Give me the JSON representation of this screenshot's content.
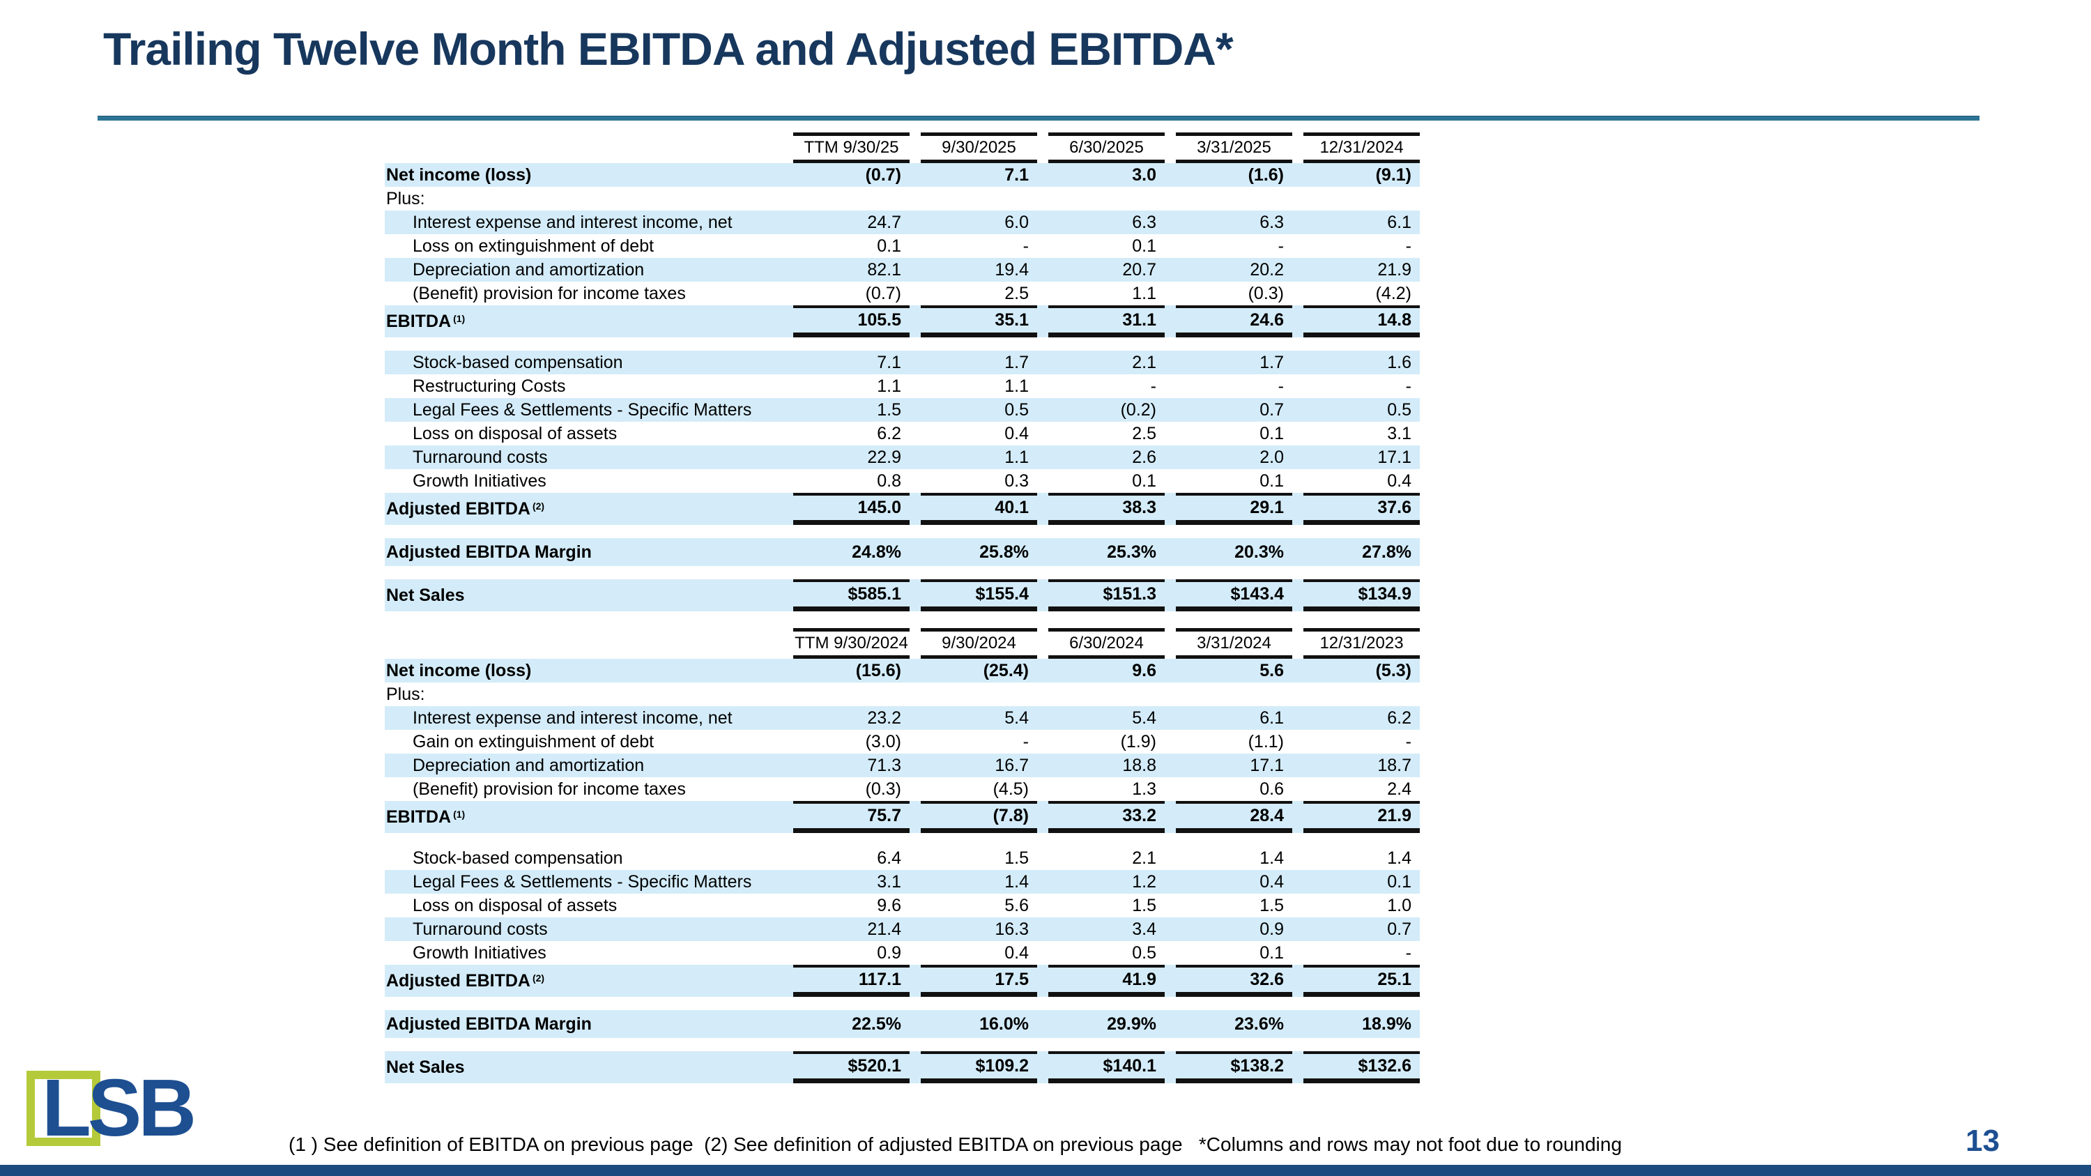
{
  "slide": {
    "title": "Trailing Twelve Month EBITDA and Adjusted EBITDA*",
    "footnote": "(1 ) See definition of EBITDA on previous page  (2) See definition of adjusted EBITDA on previous page   *Columns and rows may not foot due to rounding",
    "page_number": "13",
    "logo_text": "LSB"
  },
  "colors": {
    "title_navy": "#17375d",
    "rule_teal": "#2d7494",
    "row_blue": "#d4ecf9",
    "logo_green": "#b5ca3a",
    "logo_blue": "#1d4f91",
    "bottom_bar_navy": "#1b4b7f"
  },
  "chart_data": [
    {
      "type": "table",
      "title": "TTM EBITDA and Adjusted EBITDA - 2025 periods ($M)",
      "headers": [
        "TTM 9/30/25",
        "9/30/2025",
        "6/30/2025",
        "3/31/2025",
        "12/31/2024"
      ],
      "rows": [
        {
          "label": "Net income (loss)",
          "bold": true,
          "shaded": true,
          "values": [
            "(0.7)",
            "7.1",
            "3.0",
            "(1.6)",
            "(9.1)"
          ]
        },
        {
          "label": "Plus:",
          "values": [
            "",
            "",
            "",
            "",
            ""
          ]
        },
        {
          "label": "Interest expense and interest income, net",
          "indent": 1,
          "shaded": true,
          "values": [
            "24.7",
            "6.0",
            "6.3",
            "6.3",
            "6.1"
          ]
        },
        {
          "label": "Loss on extinguishment of debt",
          "indent": 1,
          "values": [
            "0.1",
            "-",
            "0.1",
            "-",
            "-"
          ]
        },
        {
          "label": "Depreciation and amortization",
          "indent": 1,
          "shaded": true,
          "values": [
            "82.1",
            "19.4",
            "20.7",
            "20.2",
            "21.9"
          ]
        },
        {
          "label": "(Benefit) provision for income taxes",
          "indent": 1,
          "values": [
            "(0.7)",
            "2.5",
            "1.1",
            "(0.3)",
            "(4.2)"
          ]
        },
        {
          "label": "EBITDA",
          "sup": "(1)",
          "total": true,
          "shaded": true,
          "lines": true,
          "values": [
            "105.5",
            "35.1",
            "31.1",
            "24.6",
            "14.8"
          ]
        },
        {
          "type": "spacer"
        },
        {
          "label": "Stock-based compensation",
          "indent": 1,
          "shaded": true,
          "values": [
            "7.1",
            "1.7",
            "2.1",
            "1.7",
            "1.6"
          ]
        },
        {
          "label": "Restructuring Costs",
          "indent": 1,
          "values": [
            "1.1",
            "1.1",
            "-",
            "-",
            "-"
          ]
        },
        {
          "label": "Legal Fees & Settlements - Specific Matters",
          "indent": 1,
          "shaded": true,
          "values": [
            "1.5",
            "0.5",
            "(0.2)",
            "0.7",
            "0.5"
          ]
        },
        {
          "label": "Loss on disposal of assets",
          "indent": 1,
          "values": [
            "6.2",
            "0.4",
            "2.5",
            "0.1",
            "3.1"
          ]
        },
        {
          "label": "Turnaround costs",
          "indent": 1,
          "shaded": true,
          "values": [
            "22.9",
            "1.1",
            "2.6",
            "2.0",
            "17.1"
          ]
        },
        {
          "label": "Growth Initiatives",
          "indent": 1,
          "values": [
            "0.8",
            "0.3",
            "0.1",
            "0.1",
            "0.4"
          ]
        },
        {
          "label": "Adjusted EBITDA",
          "sup": "(2)",
          "total": true,
          "shaded": true,
          "lines": true,
          "values": [
            "145.0",
            "40.1",
            "38.3",
            "29.1",
            "37.6"
          ]
        },
        {
          "type": "spacer"
        },
        {
          "label": "Adjusted EBITDA Margin",
          "bold": true,
          "shaded": true,
          "tall": true,
          "values": [
            "24.8%",
            "25.8%",
            "25.3%",
            "20.3%",
            "27.8%"
          ]
        },
        {
          "type": "spacer"
        },
        {
          "label": "Net Sales",
          "total": true,
          "shaded": true,
          "lines": true,
          "values": [
            "$585.1",
            "$155.4",
            "$151.3",
            "$143.4",
            "$134.9"
          ]
        }
      ]
    },
    {
      "type": "table",
      "title": "TTM EBITDA and Adjusted EBITDA - 2024 periods ($M)",
      "headers": [
        "TTM 9/30/2024",
        "9/30/2024",
        "6/30/2024",
        "3/31/2024",
        "12/31/2023"
      ],
      "rows": [
        {
          "label": "Net income (loss)",
          "bold": true,
          "shaded": true,
          "values": [
            "(15.6)",
            "(25.4)",
            "9.6",
            "5.6",
            "(5.3)"
          ]
        },
        {
          "label": "Plus:",
          "values": [
            "",
            "",
            "",
            "",
            ""
          ]
        },
        {
          "label": "Interest expense and interest income, net",
          "indent": 1,
          "shaded": true,
          "values": [
            "23.2",
            "5.4",
            "5.4",
            "6.1",
            "6.2"
          ]
        },
        {
          "label": "Gain on extinguishment of debt",
          "indent": 1,
          "values": [
            "(3.0)",
            "-",
            "(1.9)",
            "(1.1)",
            "-"
          ]
        },
        {
          "label": "Depreciation and amortization",
          "indent": 1,
          "shaded": true,
          "values": [
            "71.3",
            "16.7",
            "18.8",
            "17.1",
            "18.7"
          ]
        },
        {
          "label": "(Benefit) provision for income taxes",
          "indent": 1,
          "values": [
            "(0.3)",
            "(4.5)",
            "1.3",
            "0.6",
            "2.4"
          ]
        },
        {
          "label": "EBITDA",
          "sup": "(1)",
          "total": true,
          "shaded": true,
          "lines": true,
          "values": [
            "75.7",
            "(7.8)",
            "33.2",
            "28.4",
            "21.9"
          ]
        },
        {
          "type": "spacer"
        },
        {
          "label": "Stock-based compensation",
          "indent": 1,
          "values": [
            "6.4",
            "1.5",
            "2.1",
            "1.4",
            "1.4"
          ]
        },
        {
          "label": "Legal Fees & Settlements - Specific Matters",
          "indent": 1,
          "shaded": true,
          "values": [
            "3.1",
            "1.4",
            "1.2",
            "0.4",
            "0.1"
          ]
        },
        {
          "label": "Loss on disposal of assets",
          "indent": 1,
          "values": [
            "9.6",
            "5.6",
            "1.5",
            "1.5",
            "1.0"
          ]
        },
        {
          "label": "Turnaround costs",
          "indent": 1,
          "shaded": true,
          "values": [
            "21.4",
            "16.3",
            "3.4",
            "0.9",
            "0.7"
          ]
        },
        {
          "label": "Growth Initiatives",
          "indent": 1,
          "values": [
            "0.9",
            "0.4",
            "0.5",
            "0.1",
            "-"
          ]
        },
        {
          "label": "Adjusted EBITDA",
          "sup": "(2)",
          "total": true,
          "shaded": true,
          "lines": true,
          "values": [
            "117.1",
            "17.5",
            "41.9",
            "32.6",
            "25.1"
          ]
        },
        {
          "type": "spacer"
        },
        {
          "label": "Adjusted EBITDA Margin",
          "bold": true,
          "shaded": true,
          "tall": true,
          "values": [
            "22.5%",
            "16.0%",
            "29.9%",
            "23.6%",
            "18.9%"
          ]
        },
        {
          "type": "spacer"
        },
        {
          "label": "Net Sales",
          "total": true,
          "shaded": true,
          "lines": true,
          "values": [
            "$520.1",
            "$109.2",
            "$140.1",
            "$138.2",
            "$132.6"
          ]
        }
      ]
    }
  ]
}
